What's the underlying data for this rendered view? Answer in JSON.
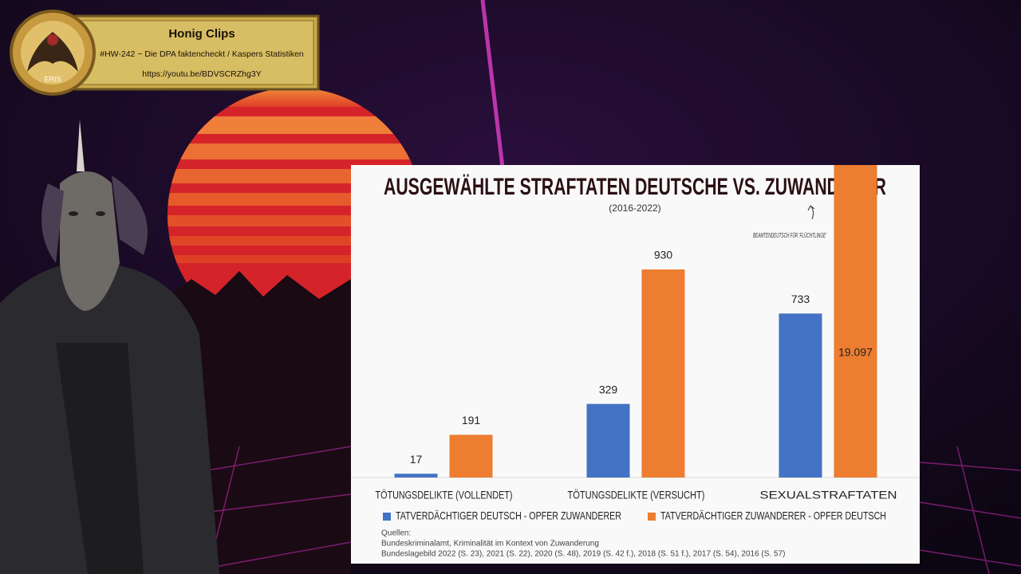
{
  "overlay": {
    "title": "Honig Clips",
    "subtitle": "#HW-242 ~ Die DPA faktencheckt / Kaspers Statistiken",
    "url": "https://youtu.be/BDVSCRZhg3Y",
    "logo": "ERIS"
  },
  "chart_data": {
    "type": "bar",
    "title": "AUSGEWÄHLTE STRAFTATEN DEUTSCHE VS. ZUWANDERER",
    "subtitle": "(2016-2022)",
    "annotation": "BEAMTENDEUTSCH FÜR 'FLÜCHTLINGE'",
    "categories": [
      "TÖTUNGSDELIKTE (VOLLENDET)",
      "TÖTUNGSDELIKTE (VERSUCHT)",
      "SEXUALSTRAFTATEN"
    ],
    "series": [
      {
        "name": "TATVERDÄCHTIGER DEUTSCH - OPFER ZUWANDERER",
        "color": "#4472c4",
        "values": [
          17,
          329,
          733
        ]
      },
      {
        "name": "TATVERDÄCHTIGER ZUWANDERER - OPFER DEUTSCH",
        "color": "#ed7d31",
        "values": [
          191,
          930,
          19097
        ],
        "value_labels": [
          "191",
          "930",
          "19.097"
        ]
      }
    ],
    "sources": [
      "Quellen:",
      "Bundeskriminalamt, Kriminalität im Kontext von Zuwanderung",
      "Bundeslagebild 2022 (S. 23), 2021 (S. 22), 2020 (S. 48), 2019 (S. 42 f.), 2018 (S. 51 f.), 2017 (S. 54), 2016 (S. 57)"
    ]
  }
}
